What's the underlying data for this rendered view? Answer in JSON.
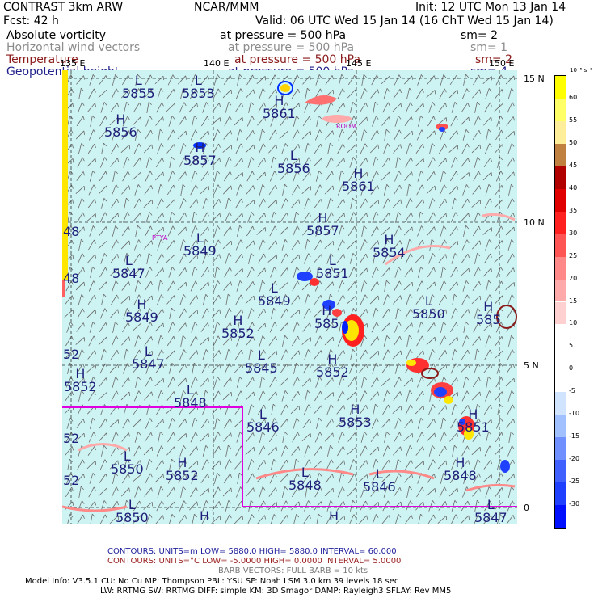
{
  "header": {
    "line1_left": "CONTRAST  3km ARW",
    "line1_mid": "NCAR/MMM",
    "line1_right": "Init: 12 UTC Mon 13 Jan 14",
    "line2_left": "Fcst:    42 h",
    "line2_right": "Valid: 06 UTC Wed 15 Jan 14 (16 ChT Wed 15 Jan 14)"
  },
  "fields": [
    {
      "name": "Absolute vorticity",
      "pressure": "at pressure =  500 hPa",
      "sm": "sm= 2",
      "color": "#000000"
    },
    {
      "name": "Horizontal wind vectors",
      "pressure": "at pressure =  500 hPa",
      "sm": "sm= 1",
      "color": "#8c8c8c"
    },
    {
      "name": "Temperature",
      "pressure": "at pressure =  500 hPa",
      "sm": "sm= 2",
      "color": "#8b1a1a"
    },
    {
      "name": "Geopotential height",
      "pressure": "at pressure =  500 hPa",
      "sm": "sm= 4",
      "color": "#20208a"
    }
  ],
  "map": {
    "lon_labels": [
      "135 E",
      "140 E",
      "145 E",
      "150 E"
    ],
    "lat_labels": [
      "15 N",
      "10 N",
      "5 N",
      "0"
    ],
    "places": [
      "ROOM",
      "PTYA"
    ],
    "side_labels": [
      "48",
      "48",
      "52",
      "52",
      "52"
    ],
    "height_labels": [
      {
        "hl": "L",
        "v": "5855"
      },
      {
        "hl": "L",
        "v": "5853"
      },
      {
        "hl": "H",
        "v": "5861"
      },
      {
        "hl": "H",
        "v": "5856"
      },
      {
        "hl": "H",
        "v": "5857"
      },
      {
        "hl": "L",
        "v": "5856"
      },
      {
        "hl": "H",
        "v": "5861"
      },
      {
        "hl": "H",
        "v": "5857"
      },
      {
        "hl": "L",
        "v": "5849"
      },
      {
        "hl": "H",
        "v": "5854"
      },
      {
        "hl": "L",
        "v": "5847"
      },
      {
        "hl": "L",
        "v": "5851"
      },
      {
        "hl": "L",
        "v": "5849"
      },
      {
        "hl": "H",
        "v": "5849"
      },
      {
        "hl": "H",
        "v": "585"
      },
      {
        "hl": "L",
        "v": "5850"
      },
      {
        "hl": "H",
        "v": "585"
      },
      {
        "hl": "H",
        "v": "5852"
      },
      {
        "hl": "L",
        "v": "5847"
      },
      {
        "hl": "L",
        "v": "5845"
      },
      {
        "hl": "H",
        "v": "5852"
      },
      {
        "hl": "H",
        "v": "5852"
      },
      {
        "hl": "L",
        "v": "5848"
      },
      {
        "hl": "L",
        "v": "5846"
      },
      {
        "hl": "H",
        "v": "5853"
      },
      {
        "hl": "H",
        "v": "5851"
      },
      {
        "hl": "L",
        "v": "5850"
      },
      {
        "hl": "H",
        "v": "5852"
      },
      {
        "hl": "L",
        "v": "5848"
      },
      {
        "hl": "L",
        "v": "5846"
      },
      {
        "hl": "H",
        "v": "5848"
      },
      {
        "hl": "L",
        "v": "5850"
      },
      {
        "hl": "H",
        "v": ""
      },
      {
        "hl": "H",
        "v": ""
      },
      {
        "hl": "L",
        "v": "5847"
      }
    ]
  },
  "colorbar": {
    "units": "10⁻⁵ s⁻¹",
    "labels": [
      "60",
      "55",
      "50",
      "45",
      "40",
      "35",
      "30",
      "25",
      "20",
      "15",
      "10",
      "5",
      "0",
      "-5",
      "-10",
      "-15",
      "-20",
      "-25",
      "-30"
    ],
    "colors": [
      "#ffff00",
      "#ffff66",
      "#ffee99",
      "#c08040",
      "#b00000",
      "#e00000",
      "#ff2020",
      "#ff5555",
      "#ff8888",
      "#ffaaaa",
      "#ffd0d0",
      "#ffffff",
      "#ffffff",
      "#ffffff",
      "#d0e4ff",
      "#a0c0ff",
      "#7090ff",
      "#4060ff",
      "#2040ff",
      "#0010ff"
    ]
  },
  "footer": {
    "contours1": "CONTOURS:  UNITS=m  LOW=  5880.0       HIGH=  5880.0       INTERVAL=   60.000",
    "contours2": "CONTOURS:  UNITS=°C  LOW=  -5.0000      HIGH=  0.0000      INTERVAL=   5.0000",
    "barbs": "BARB VECTORS:  FULL BARB = 10 kts",
    "model1": "Model Info: V3.5.1     CU: No Cu     MP: Thompson     PBL: YSU       SF: Noah LSM     3.0 km   39 levels   18 sec",
    "model2": "LW: RRTMG     SW: RRTMG   DIFF: simple KM: 3D Smagor DAMP: Rayleigh3   SFLAY: Rev MM5"
  }
}
